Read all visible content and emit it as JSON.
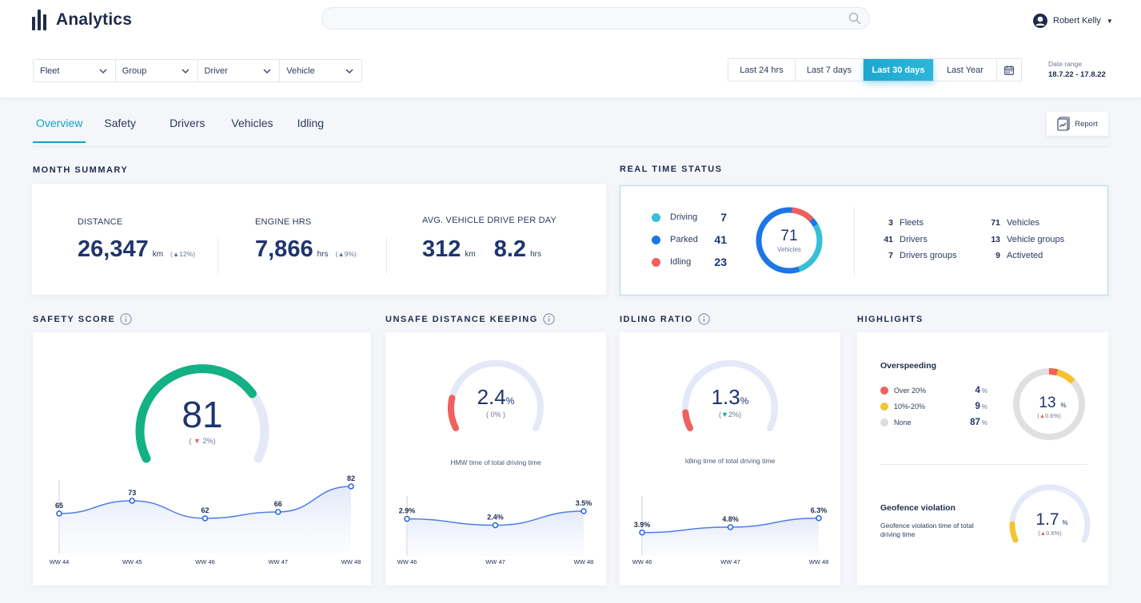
{
  "app": {
    "title": "Analytics"
  },
  "search": {
    "placeholder": ""
  },
  "user": {
    "name": "Robert Kelly"
  },
  "filters": [
    {
      "label": "Fleet"
    },
    {
      "label": "Group"
    },
    {
      "label": "Driver"
    },
    {
      "label": "Vehicle"
    }
  ],
  "ranges": [
    {
      "label": "Last 24 hrs",
      "active": false
    },
    {
      "label": "Last 7 days",
      "active": false
    },
    {
      "label": "Last 30 days",
      "active": true
    },
    {
      "label": "Last Year",
      "active": false
    }
  ],
  "date_range": {
    "label": "Date range",
    "value": "18.7.22 - 17.8.22"
  },
  "tabs": [
    {
      "label": "Overview",
      "active": true
    },
    {
      "label": "Safety"
    },
    {
      "label": "Drivers"
    },
    {
      "label": "Vehicles"
    },
    {
      "label": "Idling"
    }
  ],
  "report_label": "Report",
  "month_summary": {
    "title": "MONTH SUMMARY",
    "distance": {
      "label": "DISTANCE",
      "value": "26,347",
      "unit": "km",
      "delta": "(▲12%)"
    },
    "engine": {
      "label": "ENGINE HRS",
      "value": "7,866",
      "unit": "hrs",
      "delta": "(▲9%)"
    },
    "avg": {
      "label": "AVG. VEHICLE DRIVE PER DAY",
      "value1": "312",
      "unit1": "km",
      "value2": "8.2",
      "unit2": "hrs"
    }
  },
  "real_time": {
    "title": "REAL TIME STATUS",
    "legend": [
      {
        "label": "Driving",
        "value": "7",
        "color": "#35c0d6"
      },
      {
        "label": "Parked",
        "value": "41",
        "color": "#1d75e6"
      },
      {
        "label": "Idling",
        "value": "23",
        "color": "#f0605d"
      }
    ],
    "donut_value": "71",
    "donut_label": "Vehicles",
    "stats_left": [
      {
        "num": "3",
        "label": "Fleets"
      },
      {
        "num": "41",
        "label": "Drivers"
      },
      {
        "num": "7",
        "label": "Drivers groups"
      }
    ],
    "stats_right": [
      {
        "num": "71",
        "label": "Vehicles"
      },
      {
        "num": "13",
        "label": "Vehicle groups"
      },
      {
        "num": "9",
        "label": "Activeted"
      }
    ]
  },
  "safety": {
    "title": "SAFETY SCORE",
    "score": 81,
    "score_text": "81",
    "delta": "2%",
    "chart_data": {
      "type": "line",
      "categories": [
        "WW 44",
        "WW 45",
        "WW 46",
        "WW 47",
        "WW 48"
      ],
      "values": [
        65,
        73,
        62,
        66,
        82
      ],
      "labels": [
        "65",
        "73",
        "62",
        "66",
        "82"
      ],
      "ylim": [
        40,
        90
      ]
    }
  },
  "unsafe": {
    "title": "UNSAFE DISTANCE KEEPING",
    "value": "2.4",
    "percent": 2.4,
    "unit": "%",
    "delta": "( 0% )",
    "caption": "HMW time of total driving time",
    "chart_data": {
      "type": "line",
      "categories": [
        "WW 46",
        "WW 47",
        "WW 48"
      ],
      "values": [
        2.9,
        2.4,
        3.5
      ],
      "labels": [
        "2.9%",
        "2.4%",
        "3.5%"
      ],
      "ylim": [
        0,
        5
      ]
    }
  },
  "idling": {
    "title": "IDLING RATIO",
    "value": "1.3",
    "percent": 1.3,
    "unit": "%",
    "delta": "2%",
    "caption": "Idling time of total driving time",
    "chart_data": {
      "type": "line",
      "categories": [
        "WW 46",
        "WW 47",
        "WW 48"
      ],
      "values": [
        3.9,
        4.8,
        6.3
      ],
      "labels": [
        "3.9%",
        "4.8%",
        "6.3%"
      ],
      "ylim": [
        0,
        10
      ]
    }
  },
  "highlights": {
    "title": "HIGHLIGHTS",
    "overspeeding": {
      "title": "Overspeeding",
      "rows": [
        {
          "label": "Over 20%",
          "value": "4",
          "color": "#f0605d"
        },
        {
          "label": "10%-20%",
          "value": "9",
          "color": "#f5c230"
        },
        {
          "label": "None",
          "value": "87",
          "color": "#dcdcdc"
        }
      ],
      "donut_value": "13",
      "donut_delta": "0.6%"
    },
    "geofence": {
      "title": "Geofence violation",
      "desc": "Geofence violation time of total driving time",
      "value": "1.7",
      "percent": 1.7,
      "delta": "0.6%"
    }
  }
}
